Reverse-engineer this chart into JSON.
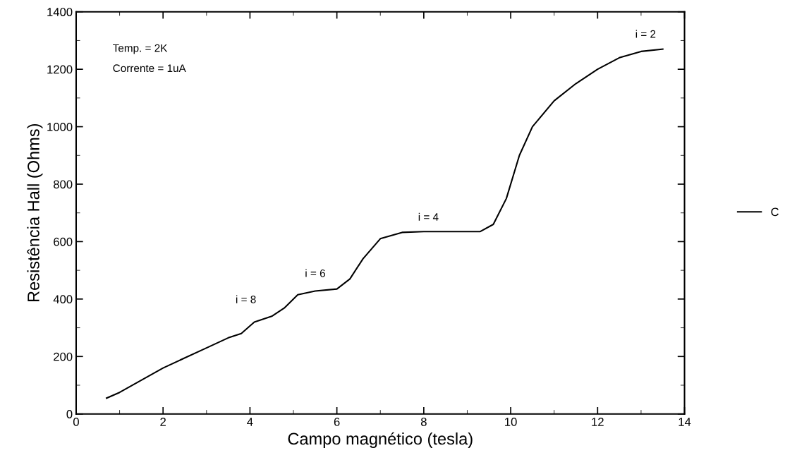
{
  "chart_data": {
    "type": "line",
    "xlabel": "Campo magnético (tesla)",
    "ylabel": "Resistência Hall (Ohms)",
    "x": [
      0.7,
      1,
      2,
      3,
      3.5,
      3.8,
      4.1,
      4.5,
      4.8,
      5.1,
      5.5,
      6.0,
      6.3,
      6.6,
      7.0,
      7.5,
      8,
      9.3,
      9.6,
      9.9,
      10.2,
      10.5,
      11,
      11.5,
      12,
      12.5,
      13,
      13.5
    ],
    "series": [
      {
        "name": "C",
        "color": "#000000",
        "values": [
          55,
          75,
          160,
          230,
          265,
          280,
          320,
          340,
          370,
          415,
          428,
          435,
          470,
          540,
          610,
          632,
          635,
          635,
          660,
          750,
          900,
          1000,
          1090,
          1150,
          1200,
          1240,
          1262,
          1270
        ]
      }
    ],
    "xlim": [
      0,
      14
    ],
    "xticks": [
      0,
      2,
      4,
      6,
      8,
      10,
      12,
      14
    ],
    "ylim": [
      0,
      1400
    ],
    "yticks": [
      0,
      200,
      400,
      600,
      800,
      1000,
      1200,
      1400
    ],
    "annotations": [
      "Temp. = 2K",
      "Corrente = 1uA",
      "i = 8",
      "i = 6",
      "i = 4",
      "i = 2"
    ],
    "legend": "right",
    "grid": false,
    "marker": "none",
    "line_style": "solid"
  }
}
